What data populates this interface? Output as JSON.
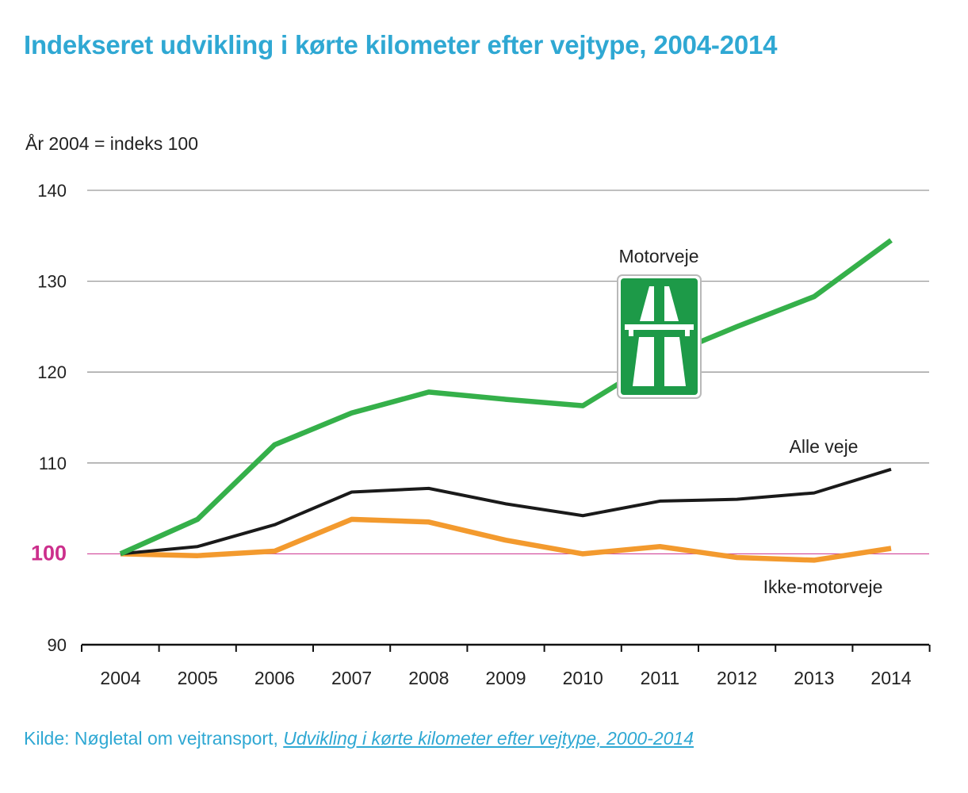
{
  "title": "Indekseret udvikling i kørte kilometer efter vejtype, 2004-2014",
  "y_note": "År 2004 = indeks 100",
  "source": {
    "prefix": "Kilde: Nøgletal om vejtransport, ",
    "link_text": "Udvikling i kørte kilometer efter vejtype, 2000-2014"
  },
  "sign_icon": "motorway-sign-icon",
  "colors": {
    "title": "#2fa8d3",
    "motorveje": "#35b04a",
    "alle_veje": "#1a1a1a",
    "ikke_motorveje": "#f39a2e",
    "baseline": "#cc2f8c",
    "grid": "#9a9a9a",
    "sign_green": "#1d9a48"
  },
  "chart_data": {
    "type": "line",
    "title": "Indekseret udvikling i kørte kilometer efter vejtype, 2004-2014",
    "xlabel": "",
    "ylabel": "År 2004 = indeks 100",
    "x": [
      "2004",
      "2005",
      "2006",
      "2007",
      "2008",
      "2009",
      "2010",
      "2011",
      "2012",
      "2013",
      "2014"
    ],
    "ylim": [
      90,
      140
    ],
    "yticks": [
      90,
      100,
      110,
      120,
      130,
      140
    ],
    "highlight_tick": 100,
    "grid": true,
    "series": [
      {
        "name": "Motorveje",
        "color": "#35b04a",
        "values": [
          100,
          103.8,
          112,
          115.5,
          117.8,
          117,
          116.3,
          121.5,
          125,
          128.3,
          134.5
        ]
      },
      {
        "name": "Alle veje",
        "color": "#1a1a1a",
        "values": [
          100,
          100.8,
          103.2,
          106.8,
          107.2,
          105.5,
          104.2,
          105.8,
          106,
          106.7,
          109.3
        ]
      },
      {
        "name": "Ikke-motorveje",
        "color": "#f39a2e",
        "values": [
          100,
          99.8,
          100.3,
          103.8,
          103.5,
          101.5,
          100,
          100.8,
          99.6,
          99.3,
          100.6
        ]
      }
    ]
  }
}
